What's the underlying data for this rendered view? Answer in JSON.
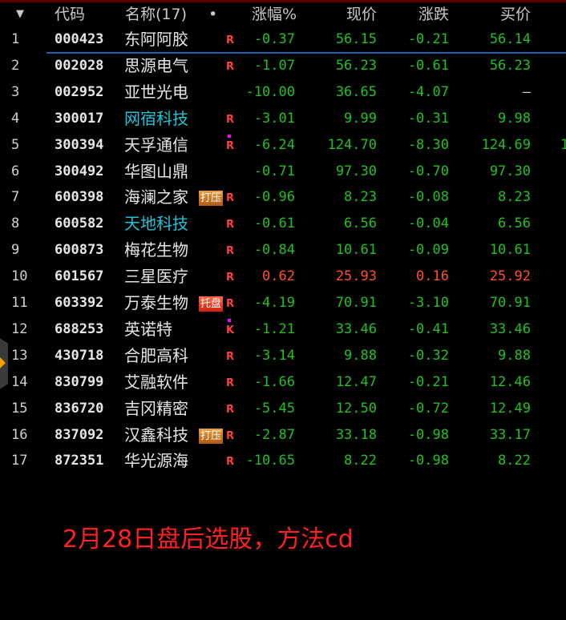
{
  "header": {
    "sort_icon": "triangle-down-icon",
    "code": "代码",
    "name": "名称(17)",
    "dot": "•",
    "change_pct": "涨幅%",
    "price": "现价",
    "change": "涨跌",
    "bid": "买价"
  },
  "rows": [
    {
      "idx": "1",
      "code": "000423",
      "name": "东阿阿胶",
      "cyan": false,
      "tag": "",
      "mark": "R",
      "dot": false,
      "pct": "-0.37",
      "price": "56.15",
      "chg": "-0.21",
      "bid": "56.14",
      "color": "g",
      "extra": ""
    },
    {
      "idx": "2",
      "code": "002028",
      "name": "思源电气",
      "cyan": false,
      "tag": "",
      "mark": "R",
      "dot": false,
      "pct": "-1.07",
      "price": "56.23",
      "chg": "-0.61",
      "bid": "56.23",
      "color": "g",
      "extra": ""
    },
    {
      "idx": "3",
      "code": "002952",
      "name": "亚世光电",
      "cyan": false,
      "tag": "",
      "mark": "",
      "dot": false,
      "pct": "-10.00",
      "price": "36.65",
      "chg": "-4.07",
      "bid": "—",
      "color": "g",
      "extra": ""
    },
    {
      "idx": "4",
      "code": "300017",
      "name": "网宿科技",
      "cyan": true,
      "tag": "",
      "mark": "R",
      "dot": false,
      "pct": "-3.01",
      "price": "9.99",
      "chg": "-0.31",
      "bid": "9.98",
      "color": "g",
      "extra": ""
    },
    {
      "idx": "5",
      "code": "300394",
      "name": "天孚通信",
      "cyan": false,
      "tag": "",
      "mark": "R",
      "dot": true,
      "pct": "-6.24",
      "price": "124.70",
      "chg": "-8.30",
      "bid": "124.69",
      "color": "g",
      "extra": "1"
    },
    {
      "idx": "6",
      "code": "300492",
      "name": "华图山鼎",
      "cyan": false,
      "tag": "",
      "mark": "",
      "dot": false,
      "pct": "-0.71",
      "price": "97.30",
      "chg": "-0.70",
      "bid": "97.30",
      "color": "g",
      "extra": ""
    },
    {
      "idx": "7",
      "code": "600398",
      "name": "海澜之家",
      "cyan": false,
      "tag": "打压",
      "mark": "R",
      "dot": false,
      "pct": "-0.96",
      "price": "8.23",
      "chg": "-0.08",
      "bid": "8.23",
      "color": "g",
      "extra": ""
    },
    {
      "idx": "8",
      "code": "600582",
      "name": "天地科技",
      "cyan": true,
      "tag": "",
      "mark": "R",
      "dot": false,
      "pct": "-0.61",
      "price": "6.56",
      "chg": "-0.04",
      "bid": "6.56",
      "color": "g",
      "extra": ""
    },
    {
      "idx": "9",
      "code": "600873",
      "name": "梅花生物",
      "cyan": false,
      "tag": "",
      "mark": "R",
      "dot": false,
      "pct": "-0.84",
      "price": "10.61",
      "chg": "-0.09",
      "bid": "10.61",
      "color": "g",
      "extra": ""
    },
    {
      "idx": "10",
      "code": "601567",
      "name": "三星医疗",
      "cyan": false,
      "tag": "",
      "mark": "R",
      "dot": false,
      "pct": "0.62",
      "price": "25.93",
      "chg": "0.16",
      "bid": "25.92",
      "color": "r",
      "extra": ""
    },
    {
      "idx": "11",
      "code": "603392",
      "name": "万泰生物",
      "cyan": false,
      "tag": "托盘",
      "tagred": true,
      "mark": "R",
      "dot": false,
      "pct": "-4.19",
      "price": "70.91",
      "chg": "-3.10",
      "bid": "70.91",
      "color": "g",
      "extra": ""
    },
    {
      "idx": "12",
      "code": "688253",
      "name": "英诺特",
      "cyan": false,
      "tag": "",
      "mark": "K",
      "dot": true,
      "pct": "-1.21",
      "price": "33.46",
      "chg": "-0.41",
      "bid": "33.46",
      "color": "g",
      "extra": ""
    },
    {
      "idx": "13",
      "code": "430718",
      "name": "合肥高科",
      "cyan": false,
      "tag": "",
      "mark": "R",
      "dot": false,
      "pct": "-3.14",
      "price": "9.88",
      "chg": "-0.32",
      "bid": "9.88",
      "color": "g",
      "extra": ""
    },
    {
      "idx": "14",
      "code": "830799",
      "name": "艾融软件",
      "cyan": false,
      "tag": "",
      "mark": "R",
      "dot": false,
      "pct": "-1.66",
      "price": "12.47",
      "chg": "-0.21",
      "bid": "12.46",
      "color": "g",
      "extra": ""
    },
    {
      "idx": "15",
      "code": "836720",
      "name": "吉冈精密",
      "cyan": false,
      "tag": "",
      "mark": "R",
      "dot": false,
      "pct": "-5.45",
      "price": "12.50",
      "chg": "-0.72",
      "bid": "12.49",
      "color": "g",
      "extra": ""
    },
    {
      "idx": "16",
      "code": "837092",
      "name": "汉鑫科技",
      "cyan": false,
      "tag": "打压",
      "mark": "R",
      "dot": false,
      "pct": "-2.87",
      "price": "33.18",
      "chg": "-0.98",
      "bid": "33.17",
      "color": "g",
      "extra": ""
    },
    {
      "idx": "17",
      "code": "872351",
      "name": "华光源海",
      "cyan": false,
      "tag": "",
      "mark": "R",
      "dot": false,
      "pct": "-10.65",
      "price": "8.22",
      "chg": "-0.98",
      "bid": "8.22",
      "color": "g",
      "extra": ""
    }
  ],
  "note": "2月28日盘后选股，方法cd",
  "colors": {
    "down": "#22c022",
    "up": "#ff5020",
    "note": "#ff2020",
    "highlight_name": "#1fc4d8",
    "selection_line": "#1d5fb0"
  },
  "side_panel": {
    "icon": "expand-arrow-icon"
  }
}
